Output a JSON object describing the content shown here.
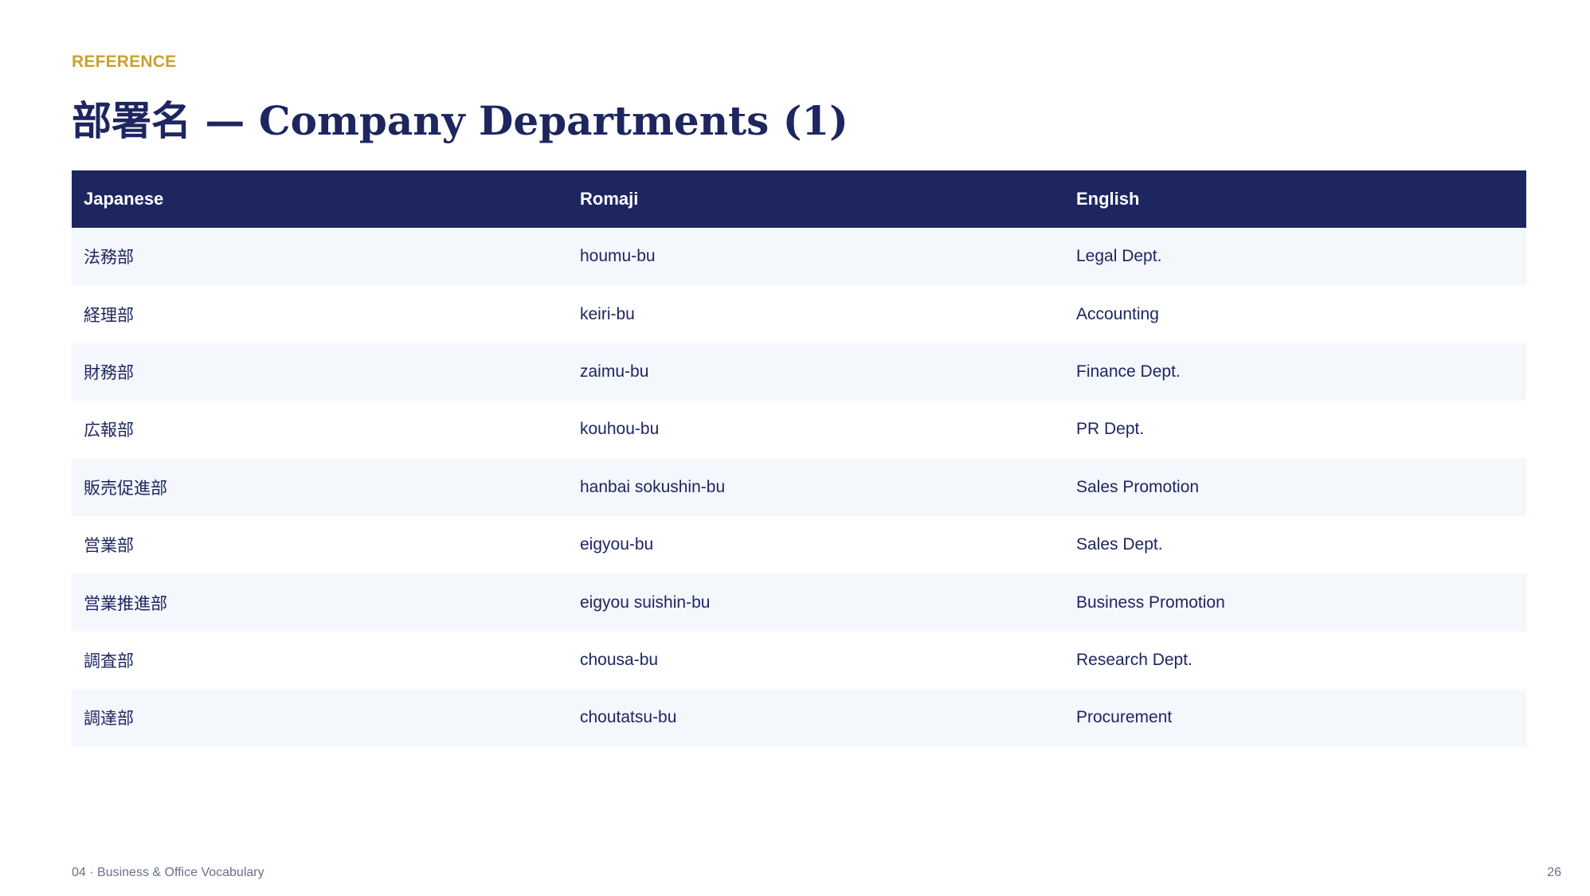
{
  "eyebrow": "REFERENCE",
  "title": "部署名 — Company Departments (1)",
  "table": {
    "headers": [
      "Japanese",
      "Romaji",
      "English"
    ],
    "rows": [
      [
        "法務部",
        "houmu-bu",
        "Legal Dept."
      ],
      [
        "経理部",
        "keiri-bu",
        "Accounting"
      ],
      [
        "財務部",
        "zaimu-bu",
        "Finance Dept."
      ],
      [
        "広報部",
        "kouhou-bu",
        "PR Dept."
      ],
      [
        "販売促進部",
        "hanbai sokushin-bu",
        "Sales Promotion"
      ],
      [
        "営業部",
        "eigyou-bu",
        "Sales Dept."
      ],
      [
        "営業推進部",
        "eigyou suishin-bu",
        "Business Promotion"
      ],
      [
        "調査部",
        "chousa-bu",
        "Research Dept."
      ],
      [
        "調達部",
        "choutatsu-bu",
        "Procurement"
      ]
    ]
  },
  "footer": {
    "section": "04 · Business & Office Vocabulary",
    "page_number": "26"
  },
  "colors": {
    "navy": "#1e2660",
    "gold": "#c8a22e",
    "row_stripe": "#f4f7fc",
    "footer_text": "#6b7086"
  }
}
